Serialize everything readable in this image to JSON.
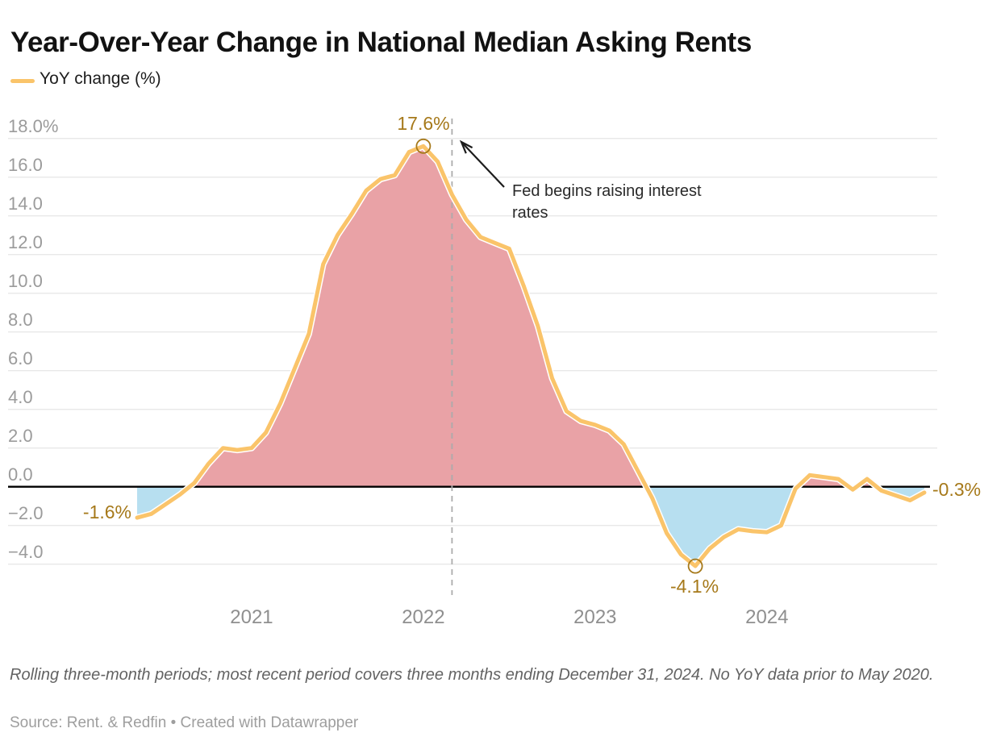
{
  "header": {
    "title": "Year-Over-Year Change in National Median Asking Rents"
  },
  "annotations": {
    "first_point_label": "-1.6%",
    "peak_label": "17.6%",
    "trough_label": "-4.1%",
    "last_point_label": "-0.3%",
    "event_label": "Fed begins raising interest rates"
  },
  "footer": {
    "note": "Rolling three-month periods; most recent period covers three months ending December 31, 2024. No YoY data prior to May 2020.",
    "source": "Source: Rent. & Redfin • Created with Datawrapper"
  },
  "chart_data": {
    "type": "area",
    "title": "Year-Over-Year Change in National Median Asking Rents",
    "xlabel": "",
    "ylabel": "YoY change (%)",
    "grid": true,
    "legend_position": "top-left",
    "legend": {
      "label": "YoY change (%)",
      "color": "#fac46a"
    },
    "ylim": [
      -4.8,
      19
    ],
    "colors": {
      "line": "#fac46a",
      "area_positive": "#e9a2a6",
      "area_negative": "#b7dff0",
      "label": "#a6791a",
      "gridline": "#e8e8e8",
      "zero_line": "#000000",
      "event_line": "#ababab"
    },
    "x": [
      "May 2020",
      "Jun 2020",
      "Jul 2020",
      "Aug 2020",
      "Sep 2020",
      "Oct 2020",
      "Nov 2020",
      "Dec 2020",
      "Jan 2021",
      "Feb 2021",
      "Mar 2021",
      "Apr 2021",
      "May 2021",
      "Jun 2021",
      "Jul 2021",
      "Aug 2021",
      "Sep 2021",
      "Oct 2021",
      "Nov 2021",
      "Dec 2021",
      "Jan 2022",
      "Feb 2022",
      "Mar 2022",
      "Apr 2022",
      "May 2022",
      "Jun 2022",
      "Jul 2022",
      "Aug 2022",
      "Sep 2022",
      "Oct 2022",
      "Nov 2022",
      "Dec 2022",
      "Jan 2023",
      "Feb 2023",
      "Mar 2023",
      "Apr 2023",
      "May 2023",
      "Jun 2023",
      "Jul 2023",
      "Aug 2023",
      "Sep 2023",
      "Oct 2023",
      "Nov 2023",
      "Dec 2023",
      "Jan 2024",
      "Feb 2024",
      "Mar 2024",
      "Apr 2024",
      "May 2024",
      "Jun 2024",
      "Jul 2024",
      "Aug 2024",
      "Sep 2024",
      "Oct 2024",
      "Nov 2024",
      "Dec 2024"
    ],
    "series": [
      {
        "name": "YoY change (%)",
        "values": [
          -1.6,
          -1.4,
          -0.9,
          -0.4,
          0.2,
          1.2,
          2.0,
          1.9,
          2.0,
          2.8,
          4.3,
          6.1,
          7.9,
          11.5,
          13.0,
          14.1,
          15.3,
          15.9,
          16.1,
          17.3,
          17.6,
          16.8,
          15.1,
          13.8,
          12.9,
          12.6,
          12.3,
          10.4,
          8.3,
          5.6,
          3.9,
          3.4,
          3.2,
          2.9,
          2.2,
          0.8,
          -0.6,
          -2.4,
          -3.5,
          -4.1,
          -3.2,
          -2.6,
          -2.2,
          -2.3,
          -2.35,
          -2.0,
          -0.1,
          0.6,
          0.5,
          0.4,
          -0.15,
          0.4,
          -0.2,
          -0.45,
          -0.7,
          -0.3
        ]
      }
    ],
    "yticks": [
      {
        "value": 18,
        "label": "18.0%"
      },
      {
        "value": 16,
        "label": "16.0"
      },
      {
        "value": 14,
        "label": "14.0"
      },
      {
        "value": 12,
        "label": "12.0"
      },
      {
        "value": 10,
        "label": "10.0"
      },
      {
        "value": 8,
        "label": "8.0"
      },
      {
        "value": 6,
        "label": "6.0"
      },
      {
        "value": 4,
        "label": "4.0"
      },
      {
        "value": 2,
        "label": "2.0"
      },
      {
        "value": 0,
        "label": "0.0"
      },
      {
        "value": -2,
        "label": "−2.0"
      },
      {
        "value": -4,
        "label": "−4.0"
      }
    ],
    "xticks": [
      {
        "label": "2021",
        "month_index": 8
      },
      {
        "label": "2022",
        "month_index": 20
      },
      {
        "label": "2023",
        "month_index": 32
      },
      {
        "label": "2024",
        "month_index": 44
      }
    ],
    "markers": [
      {
        "name": "peak",
        "month_index": 20,
        "value": 17.6
      },
      {
        "name": "trough",
        "month_index": 39,
        "value": -4.1
      }
    ],
    "event_line": {
      "month_index": 22,
      "label": "Fed begins raising interest rates"
    }
  }
}
